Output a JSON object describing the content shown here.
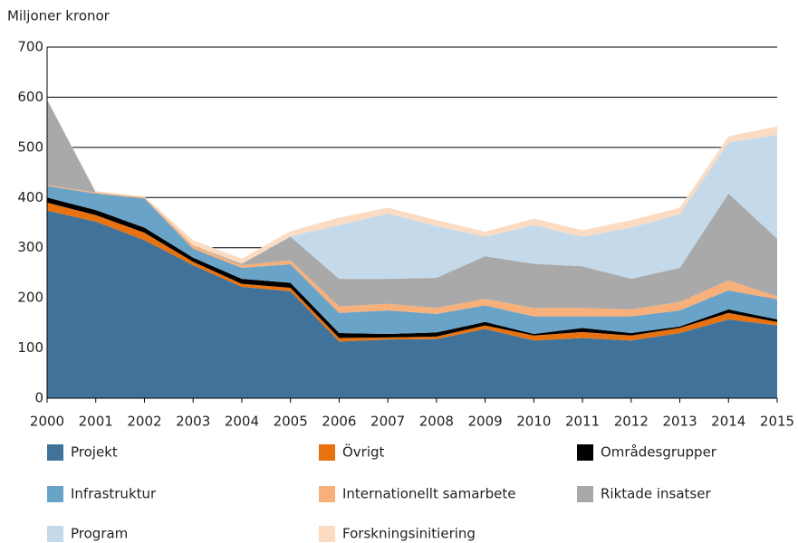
{
  "chart_data": {
    "type": "stacked_area",
    "y_label": "Miljoner kronor",
    "x": [
      2000,
      2001,
      2002,
      2003,
      2004,
      2005,
      2006,
      2007,
      2008,
      2009,
      2010,
      2011,
      2012,
      2013,
      2014,
      2015
    ],
    "xlim": [
      2000,
      2015
    ],
    "xticks": [
      2000,
      2001,
      2002,
      2003,
      2004,
      2005,
      2006,
      2007,
      2008,
      2009,
      2010,
      2011,
      2012,
      2013,
      2014,
      2015
    ],
    "ylim": [
      0,
      700
    ],
    "yticks": [
      0,
      100,
      200,
      300,
      400,
      500,
      600,
      700
    ],
    "grid": true,
    "legend": "bottom",
    "series": [
      {
        "name": "Projekt",
        "color": "#41739a",
        "values": [
          374,
          352,
          315,
          265,
          222,
          213,
          113,
          117,
          118,
          138,
          115,
          120,
          115,
          130,
          157,
          145
        ]
      },
      {
        "name": "Övrigt",
        "color": "#e8720f",
        "values": [
          16,
          13,
          15,
          7,
          6,
          7,
          7,
          4,
          5,
          7,
          10,
          12,
          10,
          10,
          13,
          7
        ]
      },
      {
        "name": "Områdesgrupper",
        "color": "#000000",
        "values": [
          10,
          10,
          10,
          8,
          10,
          10,
          10,
          7,
          8,
          7,
          3,
          8,
          5,
          3,
          7,
          5
        ]
      },
      {
        "name": "Infrastruktur",
        "color": "#6aa3c8",
        "values": [
          23,
          33,
          58,
          18,
          22,
          37,
          40,
          47,
          37,
          33,
          35,
          23,
          33,
          32,
          38,
          40
        ]
      },
      {
        "name": "Internationellt samarbete",
        "color": "#f7b07a",
        "values": [
          2,
          2,
          2,
          7,
          5,
          8,
          13,
          13,
          12,
          13,
          17,
          17,
          14,
          17,
          20,
          6
        ]
      },
      {
        "name": "Riktade insatser",
        "color": "#a9a9a9",
        "values": [
          170,
          0,
          0,
          0,
          3,
          47,
          55,
          50,
          60,
          85,
          88,
          83,
          61,
          68,
          173,
          115
        ]
      },
      {
        "name": "Program",
        "color": "#c4daea",
        "values": [
          0,
          0,
          0,
          0,
          0,
          1,
          107,
          130,
          103,
          39,
          77,
          59,
          102,
          107,
          102,
          207
        ]
      },
      {
        "name": "Forskningsinitiering",
        "color": "#fbdcc3",
        "values": [
          0,
          3,
          2,
          10,
          10,
          10,
          15,
          12,
          12,
          10,
          13,
          13,
          15,
          13,
          12,
          17
        ]
      }
    ]
  }
}
